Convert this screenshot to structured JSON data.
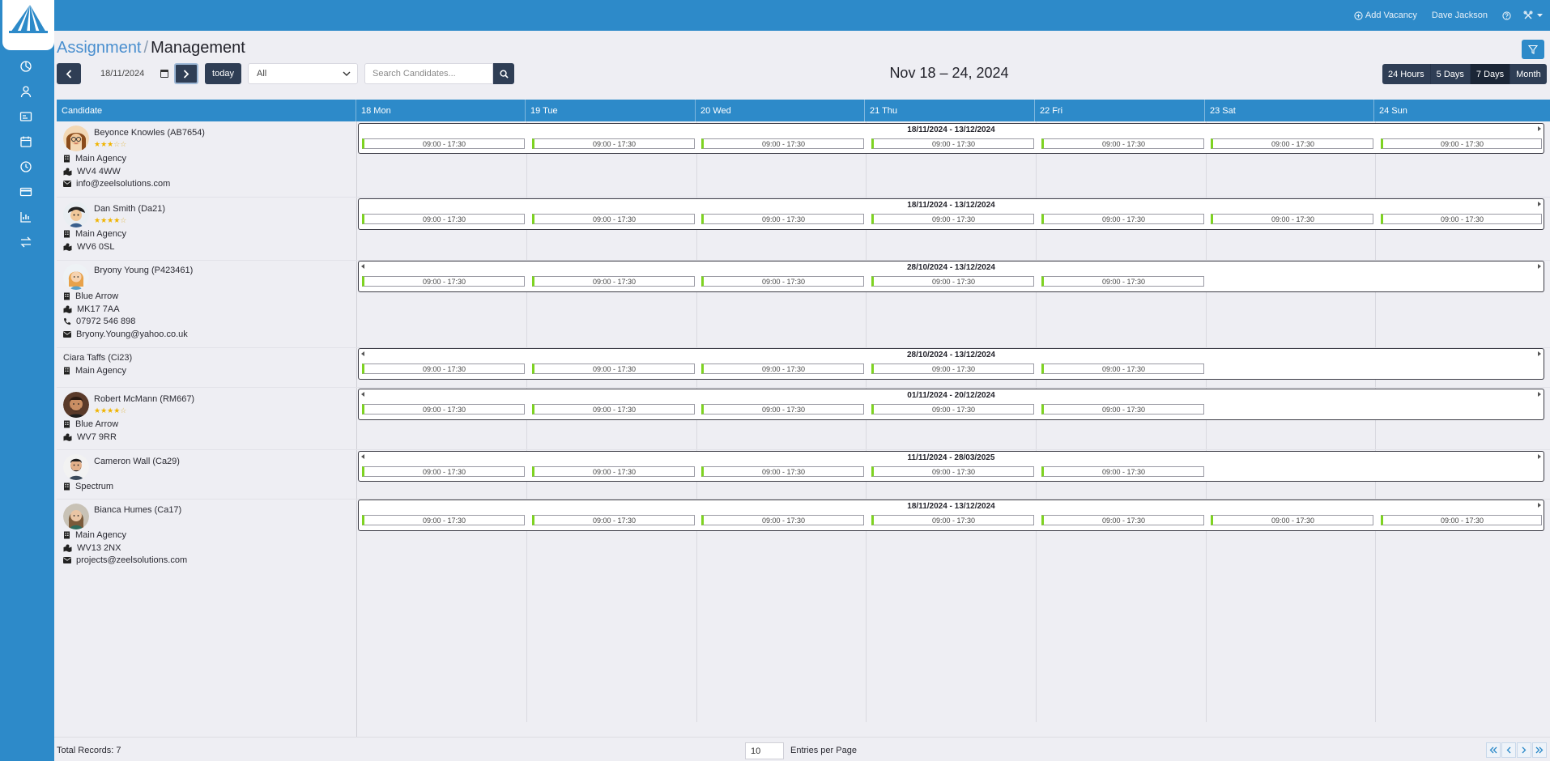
{
  "header": {
    "add_vacancy": "Add Vacancy",
    "user_name": "Dave Jackson"
  },
  "breadcrumb": {
    "parent": "Assignment",
    "separator": "/",
    "current": "Management"
  },
  "toolbar": {
    "today_label": "today",
    "date_value": "18/11/2024",
    "filter_select_value": "All",
    "search_placeholder": "Search Candidates...",
    "range_title": "Nov 18 – 24, 2024",
    "views": [
      "24 Hours",
      "5 Days",
      "7 Days",
      "Month"
    ],
    "active_view": "7 Days"
  },
  "grid": {
    "candidate_header": "Candidate",
    "days": [
      "18 Mon",
      "19 Tue",
      "20 Wed",
      "21 Thu",
      "22 Fri",
      "23 Sat",
      "24 Sun"
    ]
  },
  "candidates": [
    {
      "name": "Beyonce Knowles (AB7654)",
      "rating": 3,
      "agency": "Main Agency",
      "postcode": "WV4 4WW",
      "email": "info@zeelsolutions.com",
      "assignment": {
        "range": "18/11/2024 - 13/12/2024",
        "shift": "09:00 - 17:30",
        "shift_days": 7
      }
    },
    {
      "name": "Dan Smith (Da21)",
      "rating": 4,
      "agency": "Main Agency",
      "postcode": "WV6 0SL",
      "assignment": {
        "range": "18/11/2024 - 13/12/2024",
        "shift": "09:00 - 17:30",
        "shift_days": 7
      }
    },
    {
      "name": "Bryony Young (P423461)",
      "agency": "Blue Arrow",
      "postcode": "MK17 7AA",
      "phone": "07972 546 898",
      "email": "Bryony.Young@yahoo.co.uk",
      "assignment": {
        "range": "28/10/2024 - 13/12/2024",
        "shift": "09:00 - 17:30",
        "shift_days": 5
      }
    },
    {
      "name": "Ciara Taffs (Ci23)",
      "agency": "Main Agency",
      "assignment": {
        "range": "28/10/2024 - 13/12/2024",
        "shift": "09:00 - 17:30",
        "shift_days": 5
      }
    },
    {
      "name": "Robert McMann (RM667)",
      "rating": 4,
      "agency": "Blue Arrow",
      "postcode": "WV7 9RR",
      "assignment": {
        "range": "01/11/2024 - 20/12/2024",
        "shift": "09:00 - 17:30",
        "shift_days": 5
      }
    },
    {
      "name": "Cameron Wall (Ca29)",
      "agency": "Spectrum",
      "assignment": {
        "range": "11/11/2024 - 28/03/2025",
        "shift": "09:00 - 17:30",
        "shift_days": 5
      }
    },
    {
      "name": "Bianca Humes (Ca17)",
      "agency": "Main Agency",
      "postcode": "WV13 2NX",
      "email": "projects@zeelsolutions.com",
      "assignment": {
        "range": "18/11/2024 - 13/12/2024",
        "shift": "09:00 - 17:30",
        "shift_days": 7
      }
    }
  ],
  "footer": {
    "total_records": "Total Records: 7",
    "entries_value": "10",
    "entries_label": "Entries per Page"
  },
  "colors": {
    "primary": "#2d8ac9",
    "dark_button": "#2f3e55",
    "shift_accent": "#7ed321",
    "star": "#f0b400"
  }
}
